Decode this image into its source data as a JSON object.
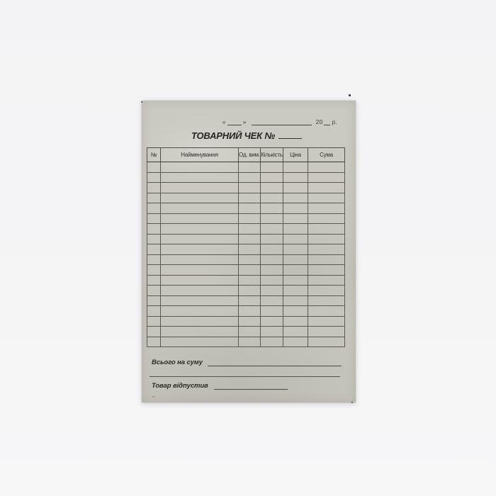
{
  "page": {
    "background_color": "#f5f5f6"
  },
  "paper": {
    "color": "#c8c7bf",
    "line_color": "#4a4942",
    "text_color": "#2b2a24"
  },
  "receipt": {
    "date_line": {
      "open_quote": "«",
      "close_quote": "»",
      "year_prefix": "20",
      "year_suffix": "р."
    },
    "title": "ТОВАРНИЙ ЧЕК №",
    "table": {
      "headers": [
        "№",
        "Найменування",
        "Од. вим.",
        "Кількість",
        "Ціна",
        "Сума"
      ],
      "empty_row_count": 18,
      "rows": []
    },
    "footer": {
      "total_label": "Всього на суму",
      "issued_by_label": "Товар відпустив"
    }
  }
}
